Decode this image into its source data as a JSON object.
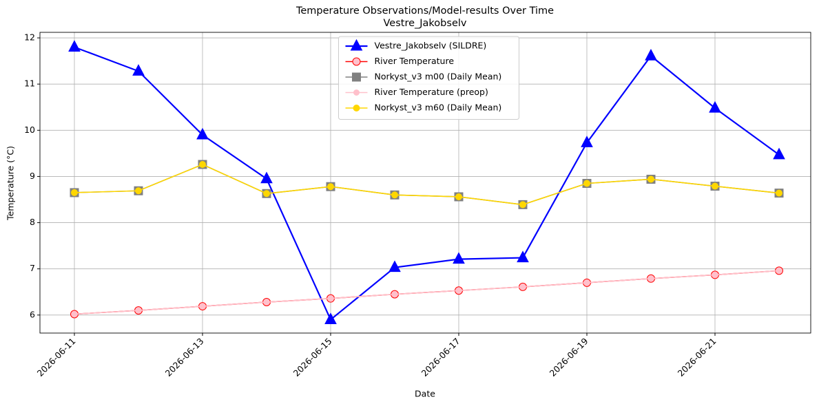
{
  "chart_data": {
    "type": "line",
    "title": "Temperature Observations/Model-results Over Time",
    "subtitle": "Vestre_Jakobselv",
    "x_label": "Date",
    "y_label": "Temperature (°C)",
    "x": [
      "2026-06-11",
      "2026-06-12",
      "2026-06-13",
      "2026-06-14",
      "2026-06-15",
      "2026-06-16",
      "2026-06-17",
      "2026-06-18",
      "2026-06-19",
      "2026-06-20",
      "2026-06-21",
      "2026-06-22"
    ],
    "xticks": [
      "2026-06-11",
      "2026-06-13",
      "2026-06-15",
      "2026-06-17",
      "2026-06-19",
      "2026-06-21"
    ],
    "ylim": [
      5.61,
      12.12
    ],
    "yticks": [
      6,
      7,
      8,
      9,
      10,
      11,
      12
    ],
    "grid": true,
    "legend": "upper center",
    "series": [
      {
        "name": "Vestre_Jakobselv (SILDRE)",
        "color": "#0000ff",
        "marker": "triangle",
        "values": [
          11.8,
          11.28,
          9.9,
          8.95,
          5.9,
          7.03,
          7.21,
          7.24,
          9.73,
          11.61,
          10.48,
          9.47
        ]
      },
      {
        "name": "River Temperature",
        "color": "#ff0000",
        "marker": "circle",
        "values": [
          6.02,
          6.1,
          6.19,
          6.28,
          6.36,
          6.45,
          6.53,
          6.61,
          6.7,
          6.79,
          6.87,
          6.96
        ]
      },
      {
        "name": "Norkyst_v3 m00 (Daily Mean)",
        "color": "#808080",
        "marker": "square",
        "values": [
          8.65,
          8.69,
          9.26,
          8.63,
          8.78,
          8.6,
          8.56,
          8.39,
          8.85,
          8.94,
          8.79,
          8.64
        ]
      },
      {
        "name": "River Temperature (preop)",
        "color": "#ffc0cb",
        "marker": "circle",
        "values": [
          6.02,
          6.1,
          6.19,
          6.28,
          6.36,
          6.45,
          6.53,
          6.61,
          6.7,
          6.79,
          6.87,
          6.96
        ]
      },
      {
        "name": "Norkyst_v3 m60 (Daily Mean)",
        "color": "#ffd700",
        "marker": "circle",
        "values": [
          8.65,
          8.69,
          9.26,
          8.63,
          8.78,
          8.6,
          8.56,
          8.39,
          8.85,
          8.94,
          8.79,
          8.64
        ]
      }
    ]
  }
}
